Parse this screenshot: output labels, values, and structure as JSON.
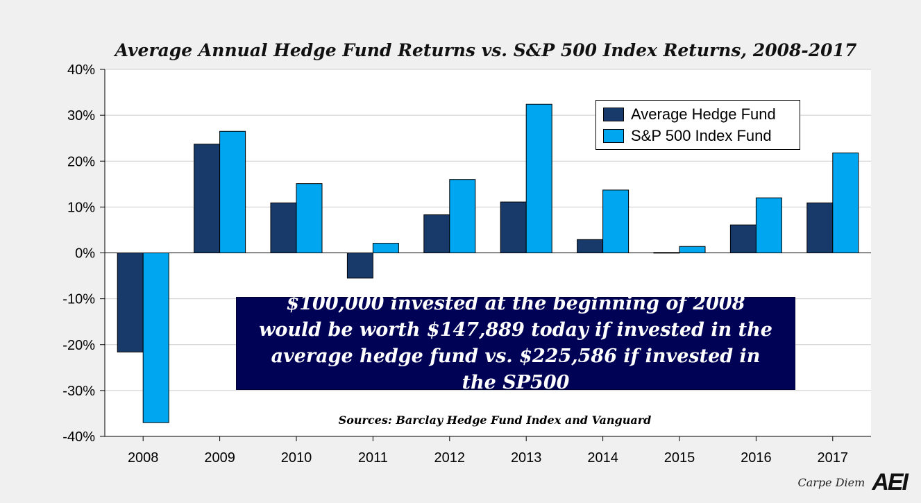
{
  "chart_data": {
    "type": "bar",
    "title": "Average Annual Hedge Fund Returns vs. S&P 500 Index Returns, 2008-2017",
    "categories": [
      "2008",
      "2009",
      "2010",
      "2011",
      "2012",
      "2013",
      "2014",
      "2015",
      "2016",
      "2017"
    ],
    "series": [
      {
        "name": "Average Hedge Fund",
        "color": "#173a6b",
        "values": [
          -21.6,
          23.7,
          10.9,
          -5.5,
          8.3,
          11.1,
          2.9,
          0.1,
          6.1,
          10.9
        ]
      },
      {
        "name": "S&P 500 Index Fund",
        "color": "#00a6f0",
        "values": [
          -37.0,
          26.5,
          15.1,
          2.1,
          16.0,
          32.4,
          13.7,
          1.4,
          12.0,
          21.8
        ]
      }
    ],
    "ylim": [
      -40,
      40
    ],
    "yticks": [
      40,
      30,
      20,
      10,
      0,
      -10,
      -20,
      -30,
      -40
    ],
    "ytick_labels": [
      "40%",
      "30%",
      "20%",
      "10%",
      "0%",
      "-10%",
      "-20%",
      "-30%",
      "-40%"
    ],
    "xlabel": "",
    "ylabel": "",
    "grid": true,
    "legend_position": "top-right",
    "annotation": "$100,000 invested at the beginning of 2008 would be worth $147,889 today if invested in the average hedge fund vs. $225,586 if invested in the SP500",
    "source": "Sources: Barclay Hedge Fund Index and Vanguard"
  },
  "brand": {
    "text": "Carpe Diem",
    "logo": "AEI"
  }
}
